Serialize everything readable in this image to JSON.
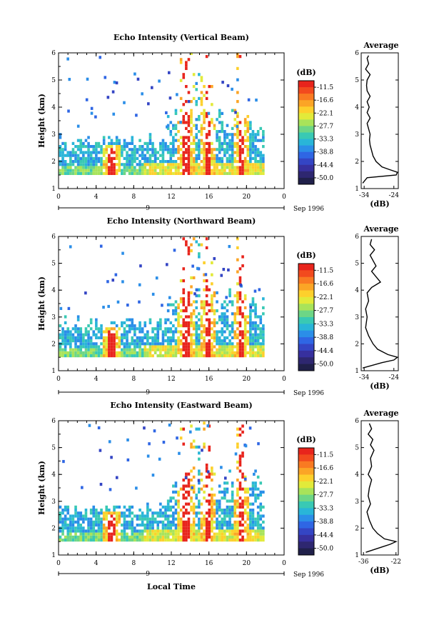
{
  "footer": {
    "xlabel": "Local Time"
  },
  "colorbar": {
    "unit": "(dB)",
    "levels": [
      "-11.5",
      "-16.6",
      "-22.1",
      "-27.7",
      "-33.3",
      "-38.8",
      "-44.4",
      "-50.0"
    ],
    "colors": [
      "#e8241c",
      "#f24a1e",
      "#f97a22",
      "#fba526",
      "#fdd02c",
      "#e2ea3a",
      "#a8e35a",
      "#6dd686",
      "#39c9b4",
      "#29b5d8",
      "#2b8ee8",
      "#2f66e4",
      "#3445c4",
      "#37309e",
      "#2e2770",
      "#20204a"
    ]
  },
  "chart_data": [
    {
      "type": "heatmap",
      "title": "Echo Intensity (Vertical Beam)",
      "ylabel": "Height (km)",
      "xlabel": "Local Time",
      "xlim": [
        0,
        24
      ],
      "ylim": [
        1,
        6
      ],
      "xticks": [
        "0",
        "4",
        "8",
        "12",
        "16",
        "20",
        "0"
      ],
      "yticks": [
        "1",
        "2",
        "3",
        "4",
        "5",
        "6"
      ],
      "date_label": "9",
      "date_suffix": "Sep 1996",
      "data_span_hours": [
        0,
        21.8
      ],
      "peak_bands_hours": [
        5.5,
        13.5,
        15.8,
        19.3
      ],
      "colorbar_label": "(dB)",
      "profile": {
        "title": "Average",
        "xlabel": "(dB)",
        "xticks": [
          "-34",
          "-24"
        ],
        "xlim": [
          -35,
          -22.5
        ],
        "ylim": [
          1,
          6
        ],
        "yticks": [
          "1",
          "2",
          "3",
          "4",
          "5",
          "6"
        ],
        "heights": [
          1.2,
          1.4,
          1.5,
          1.6,
          1.7,
          1.8,
          2.0,
          2.2,
          2.4,
          2.6,
          2.8,
          3.0,
          3.2,
          3.4,
          3.6,
          3.8,
          4.0,
          4.2,
          4.4,
          4.6,
          4.8,
          5.0,
          5.2,
          5.4,
          5.6,
          5.8,
          5.9
        ],
        "values": [
          -34.5,
          -33.0,
          -23.2,
          -22.8,
          -25.5,
          -28.0,
          -30.0,
          -31.0,
          -31.5,
          -32.0,
          -32.2,
          -32.0,
          -32.5,
          -33.0,
          -32.0,
          -33.0,
          -32.3,
          -33.0,
          -32.0,
          -33.0,
          -33.2,
          -33.0,
          -32.0,
          -33.5,
          -32.5,
          -33.0,
          -32.5
        ]
      }
    },
    {
      "type": "heatmap",
      "title": "Echo Intensity (Northward Beam)",
      "ylabel": "Height (km)",
      "xlabel": "Local Time",
      "xlim": [
        0,
        24
      ],
      "ylim": [
        1,
        6
      ],
      "xticks": [
        "0",
        "4",
        "8",
        "12",
        "16",
        "20",
        "0"
      ],
      "yticks": [
        "1",
        "2",
        "3",
        "4",
        "5",
        "6"
      ],
      "date_label": "9",
      "date_suffix": "Sep 1996",
      "data_span_hours": [
        0,
        21.8
      ],
      "peak_bands_hours": [
        5.5,
        13.5,
        15.8,
        19.3
      ],
      "colorbar_label": "(dB)",
      "profile": {
        "title": "Average",
        "xlabel": "(dB)",
        "xticks": [
          "-34",
          "-24"
        ],
        "xlim": [
          -35,
          -22.5
        ],
        "ylim": [
          1,
          6
        ],
        "yticks": [
          "1",
          "2",
          "3",
          "4",
          "5",
          "6"
        ],
        "heights": [
          1.1,
          1.3,
          1.4,
          1.5,
          1.6,
          1.8,
          2.0,
          2.3,
          2.6,
          3.0,
          3.3,
          3.6,
          3.9,
          4.1,
          4.3,
          4.5,
          4.7,
          4.9,
          5.1,
          5.3,
          5.5,
          5.7,
          5.9
        ],
        "values": [
          -34.5,
          -28.0,
          -24.0,
          -22.8,
          -26.0,
          -29.5,
          -31.0,
          -32.5,
          -33.5,
          -33.0,
          -33.5,
          -32.5,
          -33.0,
          -31.5,
          -28.5,
          -30.0,
          -31.5,
          -30.0,
          -31.0,
          -32.0,
          -30.5,
          -32.0,
          -31.5
        ]
      }
    },
    {
      "type": "heatmap",
      "title": "Echo Intensity (Eastward Beam)",
      "ylabel": "Height (km)",
      "xlabel": "Local Time",
      "xlim": [
        0,
        24
      ],
      "ylim": [
        1,
        6
      ],
      "xticks": [
        "0",
        "4",
        "8",
        "12",
        "16",
        "20",
        "0"
      ],
      "yticks": [
        "1",
        "2",
        "3",
        "4",
        "5",
        "6"
      ],
      "date_label": "9",
      "date_suffix": "Sep 1996",
      "data_span_hours": [
        0,
        21.8
      ],
      "peak_bands_hours": [
        5.5,
        13.5,
        15.8,
        19.3
      ],
      "colorbar_label": "(dB)",
      "profile": {
        "title": "Average",
        "xlabel": "(dB)",
        "xticks": [
          "-36",
          "-22"
        ],
        "xlim": [
          -37,
          -21
        ],
        "ylim": [
          1,
          6
        ],
        "yticks": [
          "1",
          "2",
          "3",
          "4",
          "5",
          "6"
        ],
        "heights": [
          1.1,
          1.3,
          1.4,
          1.5,
          1.6,
          1.8,
          2.0,
          2.3,
          2.6,
          2.9,
          3.2,
          3.5,
          3.8,
          4.0,
          4.3,
          4.6,
          4.9,
          5.1,
          5.3,
          5.5,
          5.7,
          5.9
        ],
        "values": [
          -35.0,
          -28.0,
          -24.5,
          -22.0,
          -27.0,
          -30.0,
          -32.0,
          -33.5,
          -34.5,
          -33.0,
          -34.0,
          -33.5,
          -32.5,
          -34.0,
          -32.5,
          -33.0,
          -31.5,
          -33.0,
          -32.0,
          -34.0,
          -32.5,
          -33.5
        ]
      }
    }
  ]
}
